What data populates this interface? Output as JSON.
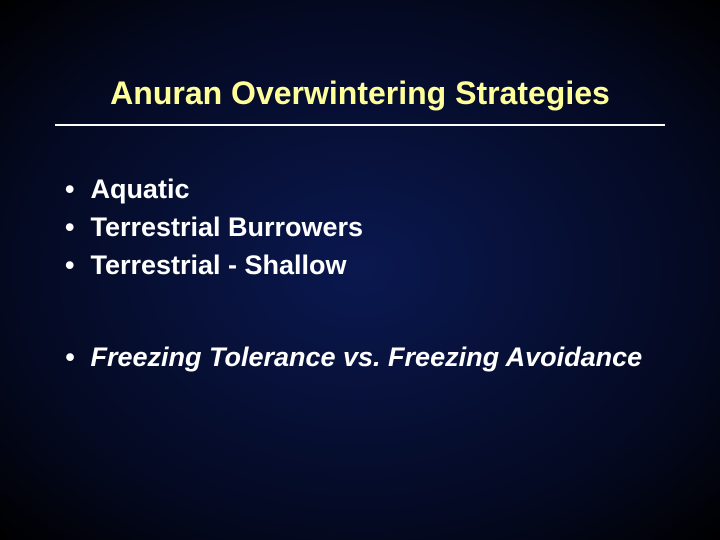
{
  "slide": {
    "title": "Anuran Overwintering Strategies",
    "bullets_group1": [
      {
        "text": "Aquatic",
        "italic": false
      },
      {
        "text": "Terrestrial Burrowers",
        "italic": false
      },
      {
        "text": "Terrestrial - Shallow",
        "italic": false
      }
    ],
    "bullets_group2": [
      {
        "text": "Freezing Tolerance vs. Freezing Avoidance",
        "italic": true
      }
    ]
  },
  "style": {
    "background_gradient_center": "#0a1850",
    "background_gradient_mid": "#040920",
    "background_gradient_edge": "#000000",
    "title_color": "#ffff99",
    "title_fontsize": 32,
    "title_fontweight": "bold",
    "divider_color": "#ffffff",
    "divider_width": 2,
    "bullet_color": "#ffffff",
    "bullet_fontsize": 27,
    "bullet_fontweight": "bold",
    "bullet_marker": "•",
    "font_family": "Arial"
  }
}
